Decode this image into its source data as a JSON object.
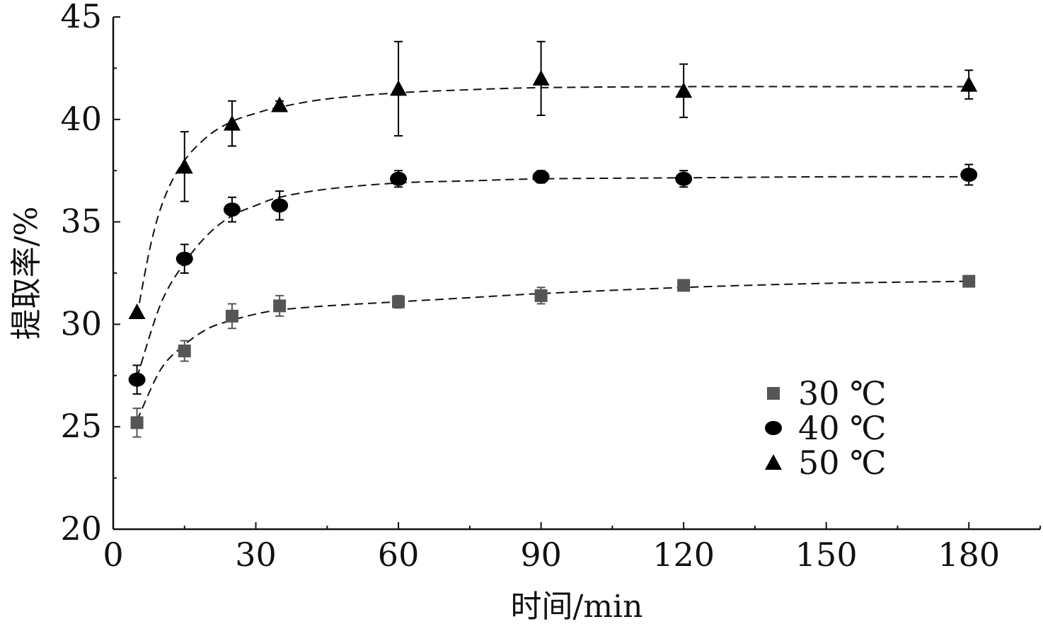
{
  "chart_data": {
    "type": "scatter",
    "xlabel": "时间/min",
    "ylabel": "提取率/%",
    "xlim": [
      0,
      195
    ],
    "ylim": [
      20,
      45
    ],
    "xticks": [
      0,
      30,
      60,
      90,
      120,
      150,
      180
    ],
    "yticks": [
      20,
      25,
      30,
      35,
      40,
      45
    ],
    "minor_ticks": true,
    "grid": false,
    "legend_position": "right",
    "fit_lines": "dashed",
    "series": [
      {
        "name": "30 ℃",
        "marker": "square",
        "color": "#555555",
        "x": [
          5,
          15,
          25,
          35,
          60,
          90,
          120,
          180
        ],
        "y": [
          25.2,
          28.7,
          30.4,
          30.9,
          31.1,
          31.4,
          31.9,
          32.1
        ],
        "error": [
          0.7,
          0.5,
          0.6,
          0.5,
          0.3,
          0.4,
          0.2,
          0.1
        ],
        "fit": [
          [
            5,
            25.3
          ],
          [
            10,
            27.8
          ],
          [
            15,
            29.0
          ],
          [
            20,
            29.8
          ],
          [
            25,
            30.2
          ],
          [
            30,
            30.5
          ],
          [
            35,
            30.7
          ],
          [
            45,
            30.9
          ],
          [
            60,
            31.1
          ],
          [
            75,
            31.3
          ],
          [
            90,
            31.5
          ],
          [
            120,
            31.8
          ],
          [
            150,
            32.0
          ],
          [
            180,
            32.1
          ]
        ]
      },
      {
        "name": "40 ℃",
        "marker": "circle",
        "color": "#000000",
        "x": [
          5,
          15,
          25,
          35,
          60,
          90,
          120,
          180
        ],
        "y": [
          27.3,
          33.2,
          35.6,
          35.8,
          37.1,
          37.2,
          37.1,
          37.3
        ],
        "error": [
          0.7,
          0.7,
          0.6,
          0.7,
          0.4,
          0.3,
          0.4,
          0.5
        ],
        "fit": [
          [
            5,
            27.4
          ],
          [
            10,
            31.0
          ],
          [
            15,
            33.0
          ],
          [
            20,
            34.4
          ],
          [
            25,
            35.3
          ],
          [
            30,
            35.8
          ],
          [
            35,
            36.2
          ],
          [
            45,
            36.6
          ],
          [
            60,
            36.9
          ],
          [
            75,
            37.0
          ],
          [
            90,
            37.1
          ],
          [
            120,
            37.15
          ],
          [
            150,
            37.2
          ],
          [
            180,
            37.2
          ]
        ]
      },
      {
        "name": "50 ℃",
        "marker": "triangle",
        "color": "#000000",
        "x": [
          5,
          15,
          25,
          35,
          60,
          90,
          120,
          180
        ],
        "y": [
          30.6,
          37.7,
          39.8,
          40.7,
          41.5,
          42.0,
          41.4,
          41.7
        ],
        "error": [
          0.0,
          1.7,
          1.1,
          0.2,
          2.3,
          1.8,
          1.3,
          0.7
        ],
        "fit": [
          [
            5,
            30.4
          ],
          [
            8,
            34.0
          ],
          [
            11,
            36.3
          ],
          [
            15,
            38.0
          ],
          [
            20,
            39.2
          ],
          [
            25,
            39.9
          ],
          [
            30,
            40.3
          ],
          [
            35,
            40.6
          ],
          [
            45,
            41.0
          ],
          [
            60,
            41.3
          ],
          [
            75,
            41.45
          ],
          [
            90,
            41.55
          ],
          [
            120,
            41.6
          ],
          [
            150,
            41.6
          ],
          [
            180,
            41.6
          ]
        ]
      }
    ]
  }
}
